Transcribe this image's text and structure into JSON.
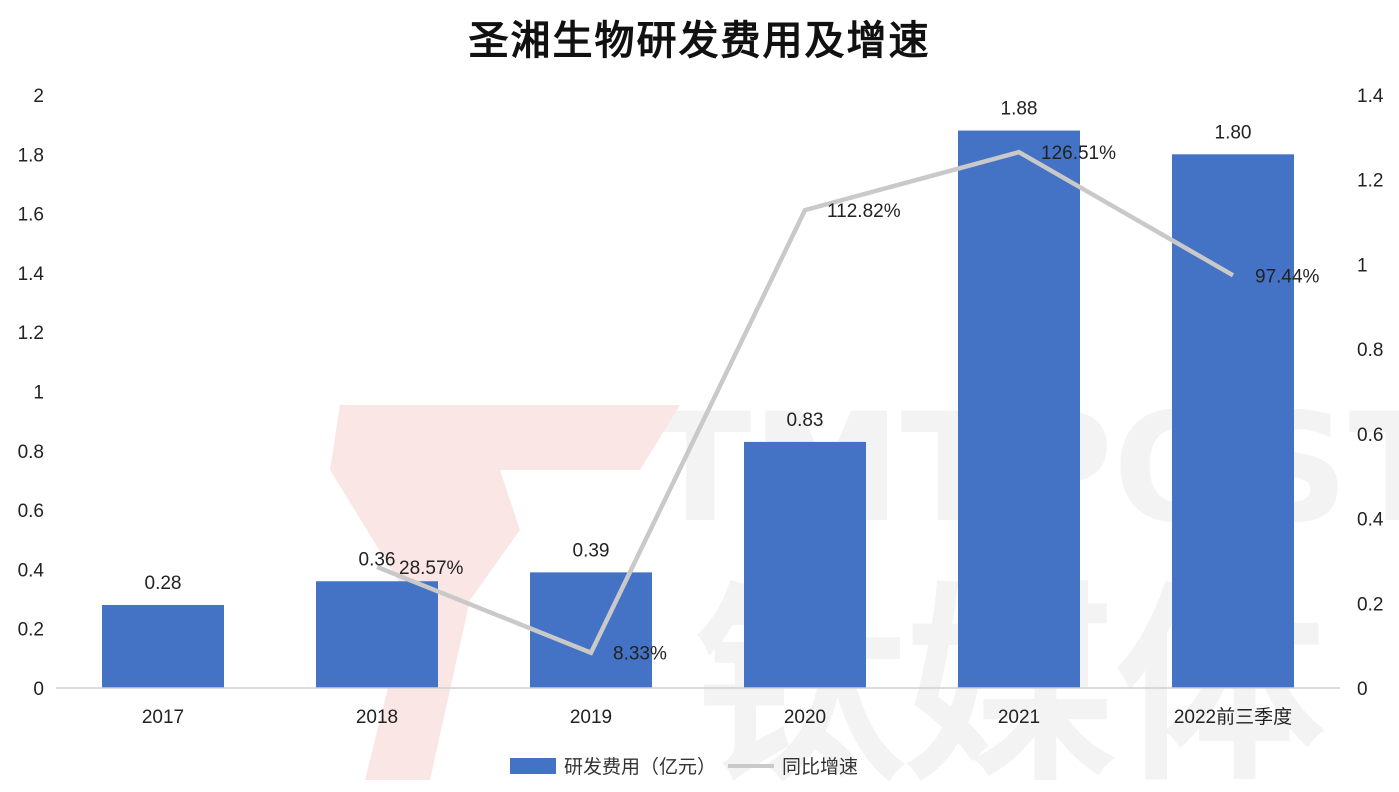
{
  "title": "圣湘生物研发费用及增速",
  "watermark": {
    "text_en": "TMTPOST",
    "text_cn": "钛媒体"
  },
  "legend": {
    "bar_label": "研发费用（亿元）",
    "line_label": "同比增速"
  },
  "colors": {
    "bar": "#4472c4",
    "line": "#c9c9c9",
    "axis_text": "#222222",
    "watermark_red": "#fbe6e6",
    "watermark_gray": "#f3f3f3"
  },
  "chart_data": {
    "type": "bar",
    "title": "圣湘生物研发费用及增速",
    "categories": [
      "2017",
      "2018",
      "2019",
      "2020",
      "2021",
      "2022前三季度"
    ],
    "series": [
      {
        "name": "研发费用（亿元）",
        "type": "bar",
        "axis": "left",
        "values": [
          0.28,
          0.36,
          0.39,
          0.83,
          1.88,
          1.8
        ],
        "labels": [
          "0.28",
          "0.36",
          "0.39",
          "0.83",
          "1.88",
          "1.80"
        ]
      },
      {
        "name": "同比增速",
        "type": "line",
        "axis": "right",
        "values": [
          null,
          0.2857,
          0.0833,
          1.1282,
          1.2651,
          0.9744
        ],
        "labels": [
          "",
          "28.57%",
          "8.33%",
          "112.82%",
          "126.51%",
          "97.44%"
        ]
      }
    ],
    "y_left": {
      "min": 0,
      "max": 2,
      "ticks": [
        "0",
        "0.2",
        "0.4",
        "0.6",
        "0.8",
        "1",
        "1.2",
        "1.4",
        "1.6",
        "1.8",
        "2"
      ]
    },
    "y_right": {
      "min": 0,
      "max": 1.4,
      "ticks": [
        "0",
        "0.2",
        "0.4",
        "0.6",
        "0.8",
        "1",
        "1.2",
        "1.4"
      ]
    },
    "grid": false,
    "legend_position": "bottom"
  }
}
